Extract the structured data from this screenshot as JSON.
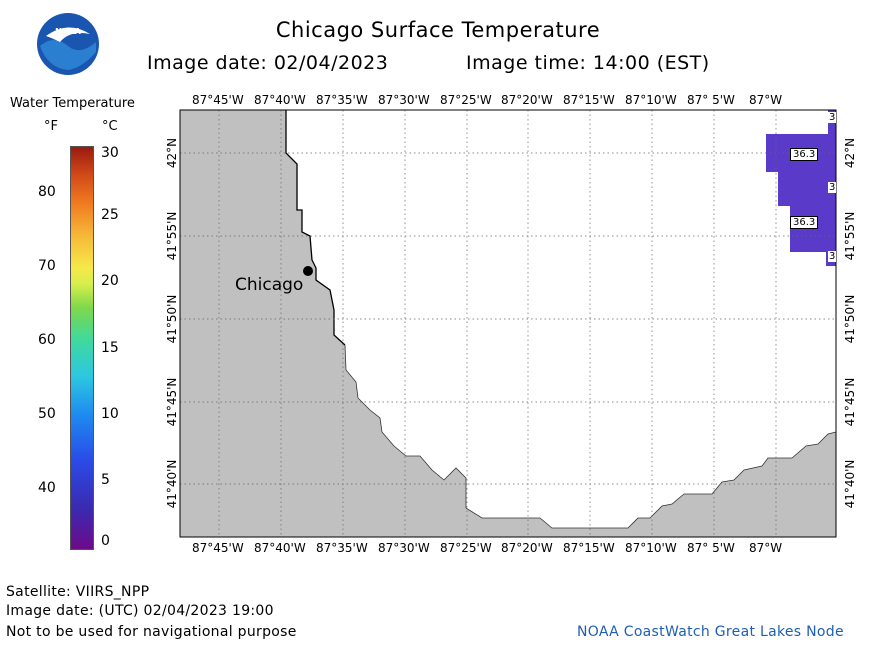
{
  "header": {
    "title": "Chicago Surface Temperature",
    "image_date": "Image date: 02/04/2023",
    "image_time": "Image time: 14:00 (EST)"
  },
  "logo": {
    "text": "NOAA"
  },
  "legend": {
    "title": "Water Temperature",
    "f_label": "°F",
    "c_label": "°C",
    "f_ticks": [
      "80",
      "70",
      "60",
      "50",
      "40"
    ],
    "c_ticks": [
      "30",
      "25",
      "20",
      "15",
      "10",
      "5",
      "0"
    ]
  },
  "map": {
    "top_lon_labels": [
      "87°45'W",
      "87°40'W",
      "87°35'W",
      "87°30'W",
      "87°25'W",
      "87°20'W",
      "87°15'W",
      "87°10'W",
      "87° 5'W",
      "87°W"
    ],
    "bottom_lon_labels": [
      "87°45'W",
      "87°40'W",
      "87°35'W",
      "87°30'W",
      "87°25'W",
      "87°20'W",
      "87°15'W",
      "87°10'W",
      "87° 5'W",
      "87°W"
    ],
    "lat_labels": [
      "42°N",
      "41°55'N",
      "41°50'N",
      "41°45'N",
      "41°40'N"
    ],
    "city_label": "Chicago",
    "temp_labels": [
      "3",
      "36.3",
      "3",
      "36.3",
      "3"
    ],
    "colors": {
      "land": "#c0c0c0",
      "water": "#ffffff",
      "warm_patch": "#5a3ac8",
      "grid": "#777777"
    }
  },
  "footer": {
    "satellite": "Satellite: VIIRS_NPP",
    "utc_date": "Image date: (UTC) 02/04/2023  19:00",
    "warning": "Not to be used for navigational purpose",
    "credit": "NOAA CoastWatch Great Lakes Node"
  }
}
